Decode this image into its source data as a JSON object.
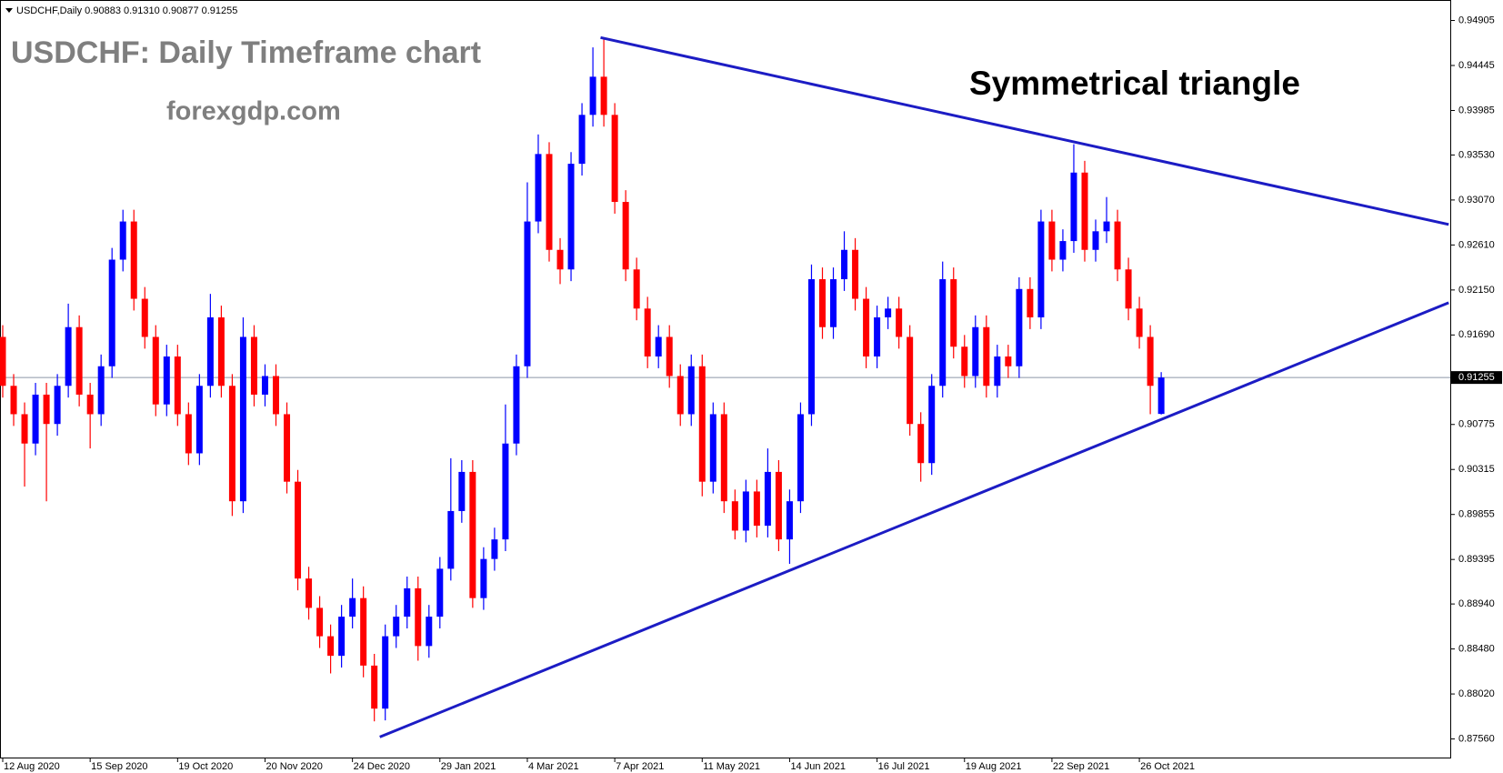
{
  "chart_data": {
    "type": "candlestick",
    "header": "USDCHF,Daily  0.90883 0.91310 0.90877 0.91255",
    "title": "USDCHF: Daily Timeframe chart",
    "subtitle": "forexgdp.com",
    "annotation": "Symmetrical triangle",
    "up_color": "#0000ff",
    "down_color": "#ff0000",
    "current_price": 0.91255,
    "current_price_color": "#8c96a8",
    "ylim": [
      0.8737,
      0.9504
    ],
    "yticks": [
      0.94905,
      0.94445,
      0.93985,
      {
        "value": 0.9353,
        "label": "0.93530"
      },
      {
        "value": 0.9307,
        "label": "0.93070"
      },
      {
        "value": 0.9261,
        "label": "0.92610"
      },
      {
        "value": 0.9215,
        "label": "0.92150"
      },
      {
        "value": 0.9169,
        "label": "0.91690"
      },
      0.90775,
      0.90315,
      0.89855,
      0.89395,
      {
        "value": 0.8894,
        "label": "0.88940"
      },
      {
        "value": 0.8848,
        "label": "0.88480"
      },
      {
        "value": 0.8802,
        "label": "0.88020"
      },
      {
        "value": 0.8756,
        "label": "0.87560"
      }
    ],
    "categories": [
      "12 Aug 2020",
      null,
      null,
      null,
      null,
      null,
      null,
      null,
      "15 Sep 2020",
      null,
      null,
      null,
      null,
      null,
      null,
      null,
      "19 Oct 2020",
      null,
      null,
      null,
      null,
      null,
      null,
      null,
      "20 Nov 2020",
      null,
      null,
      null,
      null,
      null,
      null,
      null,
      "24 Dec 2020",
      null,
      null,
      null,
      null,
      null,
      null,
      null,
      "29 Jan 2021",
      null,
      null,
      null,
      null,
      null,
      null,
      null,
      "4 Mar 2021",
      null,
      null,
      null,
      null,
      null,
      null,
      null,
      "7 Apr 2021",
      null,
      null,
      null,
      null,
      null,
      null,
      null,
      "11 May 2021",
      null,
      null,
      null,
      null,
      null,
      null,
      null,
      "14 Jun 2021",
      null,
      null,
      null,
      null,
      null,
      null,
      null,
      "16 Jul 2021",
      null,
      null,
      null,
      null,
      null,
      null,
      null,
      "19 Aug 2021",
      null,
      null,
      null,
      null,
      null,
      null,
      null,
      "22 Sep 2021",
      null,
      null,
      null,
      null,
      null,
      null,
      null,
      "26 Oct 2021",
      null,
      null
    ],
    "open": [
      0.9167,
      0.9117,
      0.9088,
      0.9058,
      0.9108,
      0.9078,
      0.9117,
      0.9177,
      0.9108,
      0.9088,
      0.9137,
      0.9246,
      0.9285,
      0.9206,
      0.9167,
      0.9098,
      0.9147,
      0.9088,
      0.9048,
      0.9117,
      0.9187,
      0.9117,
      0.8999,
      0.9167,
      0.9108,
      0.9127,
      0.9088,
      0.9019,
      0.892,
      0.889,
      0.8861,
      0.8841,
      0.8881,
      0.89,
      0.8831,
      0.8787,
      0.8861,
      0.8881,
      0.891,
      0.8851,
      0.8881,
      0.893,
      0.8989,
      0.9029,
      0.89,
      0.894,
      0.896,
      0.9058,
      0.9137,
      0.9285,
      0.9354,
      0.9256,
      0.9236,
      0.9344,
      0.9394,
      0.9433,
      0.9394,
      0.9305,
      0.9236,
      0.9196,
      0.9147,
      0.9167,
      0.9127,
      0.9088,
      0.9137,
      0.9019,
      0.9088,
      0.8999,
      0.8969,
      0.9009,
      0.8974,
      0.9029,
      0.896,
      0.8999,
      0.9088,
      0.9226,
      0.9177,
      0.9226,
      0.9256,
      0.9206,
      0.9147,
      0.9187,
      0.9196,
      0.9167,
      0.9078,
      0.9038,
      0.9117,
      0.9226,
      0.9157,
      0.9127,
      0.9177,
      0.9117,
      0.9147,
      0.9137,
      0.9216,
      0.9187,
      0.9285,
      0.9246,
      0.9265,
      0.9335,
      0.9256,
      0.9275,
      0.9285,
      0.9236,
      0.9196,
      0.9167,
      0.90883
    ],
    "high": [
      0.9179,
      0.9129,
      0.91,
      0.912,
      0.912,
      0.9129,
      0.9201,
      0.9189,
      0.912,
      0.9149,
      0.9258,
      0.9297,
      0.9297,
      0.9218,
      0.9179,
      0.9159,
      0.9159,
      0.91,
      0.9129,
      0.9211,
      0.9199,
      0.9129,
      0.9187,
      0.9179,
      0.9139,
      0.9139,
      0.91,
      0.9031,
      0.8932,
      0.8902,
      0.8873,
      0.8893,
      0.892,
      0.8912,
      0.8843,
      0.8873,
      0.8893,
      0.8922,
      0.8922,
      0.8893,
      0.8942,
      0.9043,
      0.9041,
      0.9041,
      0.8952,
      0.8972,
      0.9098,
      0.9149,
      0.9325,
      0.9374,
      0.9366,
      0.9268,
      0.9356,
      0.9406,
      0.9463,
      0.9473,
      0.9406,
      0.9317,
      0.9248,
      0.9208,
      0.9179,
      0.9179,
      0.9139,
      0.9149,
      0.9149,
      0.91,
      0.91,
      0.9011,
      0.9021,
      0.9021,
      0.9053,
      0.9041,
      0.9011,
      0.91,
      0.9241,
      0.9238,
      0.9238,
      0.9275,
      0.9268,
      0.9218,
      0.9199,
      0.9208,
      0.9208,
      0.9179,
      0.909,
      0.9129,
      0.9244,
      0.9238,
      0.9169,
      0.9189,
      0.9189,
      0.9159,
      0.9159,
      0.9228,
      0.9228,
      0.9297,
      0.9297,
      0.9277,
      0.9364,
      0.9347,
      0.9287,
      0.931,
      0.9297,
      0.9248,
      0.9208,
      0.9179,
      0.9131
    ],
    "low": [
      0.9105,
      0.9076,
      0.9014,
      0.9046,
      0.8999,
      0.9066,
      0.9105,
      0.9096,
      0.9053,
      0.9076,
      0.9125,
      0.9234,
      0.9194,
      0.9155,
      0.9086,
      0.9086,
      0.9076,
      0.9036,
      0.9036,
      0.9105,
      0.9105,
      0.8984,
      0.8987,
      0.9096,
      0.9096,
      0.9076,
      0.9007,
      0.8908,
      0.8878,
      0.8849,
      0.8823,
      0.8829,
      0.8869,
      0.8819,
      0.8774,
      0.8775,
      0.8849,
      0.8869,
      0.8836,
      0.8839,
      0.8869,
      0.8918,
      0.8977,
      0.889,
      0.8888,
      0.8928,
      0.8948,
      0.9046,
      0.9125,
      0.9273,
      0.9244,
      0.9221,
      0.9224,
      0.9332,
      0.9382,
      0.9382,
      0.9293,
      0.9224,
      0.9184,
      0.9135,
      0.9135,
      0.9115,
      0.9076,
      0.9076,
      0.9004,
      0.9007,
      0.8987,
      0.896,
      0.8957,
      0.8962,
      0.8962,
      0.8948,
      0.8935,
      0.8987,
      0.9076,
      0.9165,
      0.9165,
      0.9214,
      0.9194,
      0.9135,
      0.9135,
      0.9175,
      0.9155,
      0.9066,
      0.9019,
      0.9026,
      0.9105,
      0.9145,
      0.9115,
      0.9115,
      0.9105,
      0.9105,
      0.9125,
      0.9125,
      0.9175,
      0.9175,
      0.9234,
      0.9234,
      0.9253,
      0.9244,
      0.9244,
      0.9263,
      0.9224,
      0.9184,
      0.9155,
      0.9088,
      0.90877
    ],
    "close": [
      0.9117,
      0.9088,
      0.9058,
      0.9108,
      0.9078,
      0.9117,
      0.9177,
      0.9108,
      0.9088,
      0.9137,
      0.9246,
      0.9285,
      0.9206,
      0.9167,
      0.9098,
      0.9147,
      0.9088,
      0.9048,
      0.9117,
      0.9187,
      0.9117,
      0.8999,
      0.9167,
      0.9108,
      0.9127,
      0.9088,
      0.9019,
      0.892,
      0.889,
      0.8861,
      0.8841,
      0.8881,
      0.89,
      0.8831,
      0.8787,
      0.8861,
      0.8881,
      0.891,
      0.8851,
      0.8881,
      0.893,
      0.8989,
      0.9029,
      0.89,
      0.894,
      0.896,
      0.9058,
      0.9137,
      0.9285,
      0.9354,
      0.9256,
      0.9236,
      0.9344,
      0.9394,
      0.9433,
      0.9394,
      0.9305,
      0.9236,
      0.9196,
      0.9147,
      0.9167,
      0.9127,
      0.9088,
      0.9137,
      0.9019,
      0.9088,
      0.8999,
      0.8969,
      0.9009,
      0.8974,
      0.9029,
      0.896,
      0.8999,
      0.9088,
      0.9226,
      0.9177,
      0.9226,
      0.9256,
      0.9206,
      0.9147,
      0.9187,
      0.9196,
      0.9167,
      0.9078,
      0.9038,
      0.9117,
      0.9226,
      0.9157,
      0.9127,
      0.9177,
      0.9117,
      0.9147,
      0.9137,
      0.9216,
      0.9187,
      0.9285,
      0.9246,
      0.9265,
      0.9335,
      0.9256,
      0.9275,
      0.9285,
      0.9236,
      0.9196,
      0.9167,
      0.9117,
      0.91255
    ],
    "trendlines": [
      {
        "color": "#1c1cc4",
        "x": [
          54.7,
          132.3
        ],
        "y": [
          0.9473,
          0.9282
        ]
      },
      {
        "color": "#1c1cc4",
        "x": [
          34.5,
          132.3
        ],
        "y": [
          0.8758,
          0.9202
        ]
      }
    ]
  }
}
